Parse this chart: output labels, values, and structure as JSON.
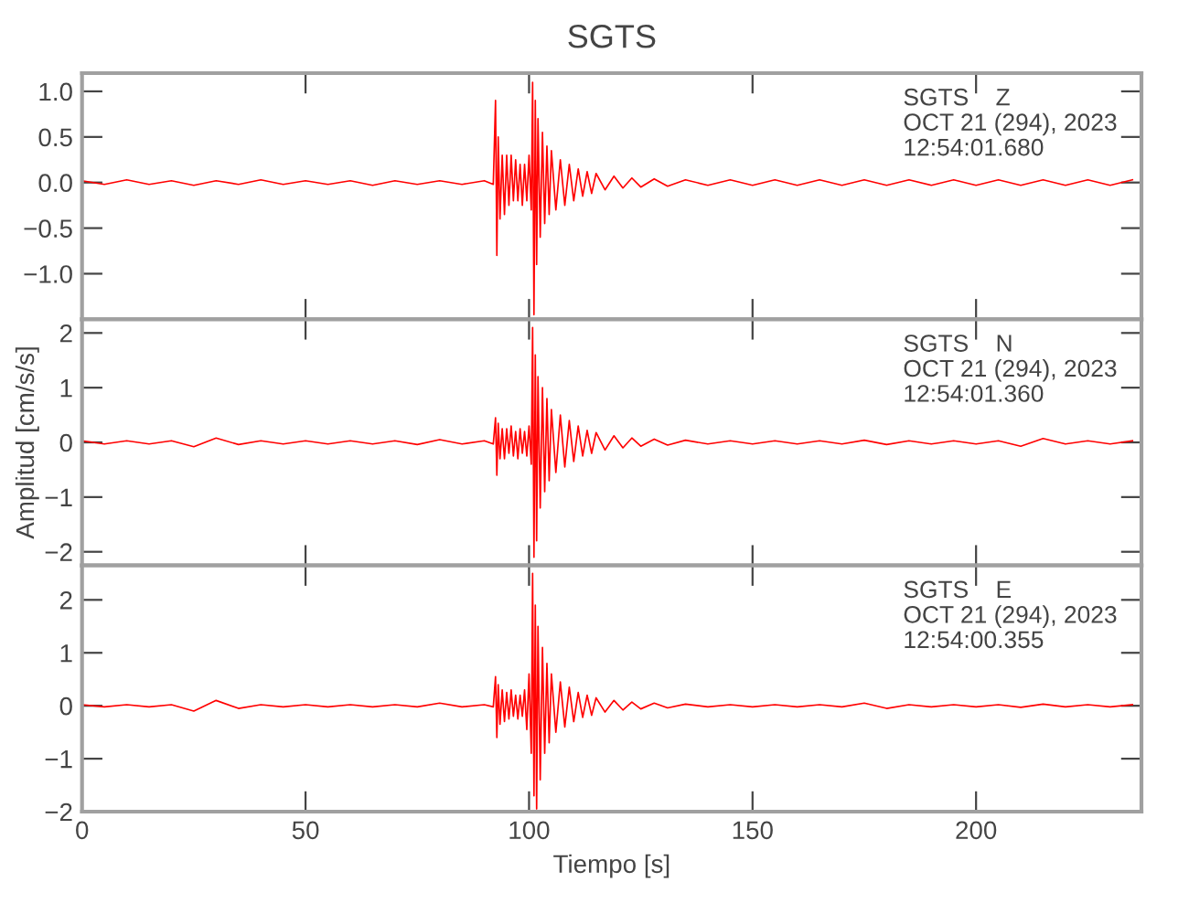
{
  "chart_data": [
    {
      "type": "line",
      "title": "SGTS",
      "annotations": [
        "SGTS    Z\nOCT 21 (294), 2023\n12:54:01.680"
      ],
      "x": [
        0,
        5,
        10,
        15,
        20,
        25,
        30,
        35,
        40,
        45,
        50,
        55,
        60,
        65,
        70,
        75,
        80,
        85,
        90,
        92,
        92.5,
        92.8,
        93.1,
        93.5,
        94,
        94.5,
        95,
        95.5,
        96,
        96.5,
        97,
        97.5,
        98,
        98.5,
        99,
        99.5,
        100,
        100.5,
        100.8,
        101.1,
        101.4,
        101.7,
        102,
        102.5,
        103,
        103.5,
        104,
        104.5,
        105,
        106,
        107,
        108,
        109,
        110,
        111,
        112,
        113,
        114,
        115,
        117,
        119,
        121,
        123,
        125,
        128,
        131,
        135,
        140,
        145,
        150,
        155,
        160,
        165,
        170,
        175,
        180,
        185,
        190,
        195,
        200,
        205,
        210,
        215,
        220,
        225,
        230,
        235
      ],
      "series": [
        {
          "color": "#ff0000",
          "values": [
            0.02,
            -0.02,
            0.03,
            -0.02,
            0.02,
            -0.03,
            0.02,
            -0.02,
            0.03,
            -0.02,
            0.02,
            -0.02,
            0.02,
            -0.03,
            0.02,
            -0.02,
            0.02,
            -0.02,
            0.02,
            -0.02,
            0.9,
            -0.8,
            0.5,
            -0.4,
            0.3,
            -0.35,
            0.3,
            -0.25,
            0.3,
            -0.2,
            0.25,
            -0.2,
            0.2,
            -0.25,
            0.2,
            -0.2,
            0.3,
            -0.3,
            1.1,
            -1.45,
            0.9,
            -0.9,
            0.7,
            -0.6,
            0.55,
            -0.45,
            0.4,
            -0.35,
            0.35,
            -0.3,
            0.25,
            -0.25,
            0.2,
            -0.2,
            0.15,
            -0.15,
            0.12,
            -0.12,
            0.1,
            -0.08,
            0.07,
            -0.06,
            0.05,
            -0.05,
            0.04,
            -0.04,
            0.03,
            -0.03,
            0.03,
            -0.03,
            0.03,
            -0.03,
            0.03,
            -0.03,
            0.03,
            -0.03,
            0.03,
            -0.03,
            0.03,
            -0.03,
            0.03,
            -0.03,
            0.03,
            -0.03,
            0.03,
            -0.03,
            0.03
          ]
        }
      ],
      "xlim": [
        0,
        237
      ],
      "xticks": [
        0,
        50,
        100,
        150,
        200
      ],
      "ylim": [
        -1.5,
        1.2
      ],
      "yticks": [
        {
          "value": -1.0,
          "label": "−1.0"
        },
        {
          "value": -0.5,
          "label": "−0.5"
        },
        {
          "value": 0.0,
          "label": "0.0"
        },
        {
          "value": 0.5,
          "label": "0.5"
        },
        {
          "value": 1.0,
          "label": "1.0"
        }
      ],
      "tick_labels": "y",
      "grid": false,
      "legend": false
    },
    {
      "type": "line",
      "ylabel": "Amplitud [cm/s/s]",
      "annotations": [
        "SGTS    N\nOCT 21 (294), 2023\n12:54:01.360"
      ],
      "x": [
        0,
        5,
        10,
        15,
        20,
        25,
        30,
        35,
        40,
        45,
        50,
        55,
        60,
        65,
        70,
        75,
        80,
        85,
        90,
        92,
        92.5,
        92.8,
        93.1,
        93.5,
        94,
        94.5,
        95,
        95.5,
        96,
        96.5,
        97,
        97.5,
        98,
        98.5,
        99,
        99.5,
        100,
        100.5,
        100.8,
        101.1,
        101.4,
        101.7,
        102,
        102.5,
        103,
        103.5,
        104,
        104.5,
        105,
        106,
        107,
        108,
        109,
        110,
        111,
        112,
        113,
        114,
        115,
        117,
        119,
        121,
        123,
        125,
        128,
        131,
        135,
        140,
        145,
        150,
        155,
        160,
        165,
        170,
        175,
        180,
        185,
        190,
        195,
        200,
        205,
        210,
        215,
        220,
        225,
        230,
        235
      ],
      "series": [
        {
          "color": "#ff0000",
          "values": [
            0.03,
            -0.03,
            0.03,
            -0.03,
            0.03,
            -0.08,
            0.08,
            -0.04,
            0.03,
            -0.03,
            0.03,
            -0.03,
            0.03,
            -0.03,
            0.03,
            -0.04,
            0.05,
            -0.03,
            0.03,
            -0.03,
            0.45,
            -0.6,
            0.35,
            -0.3,
            0.25,
            -0.3,
            0.25,
            -0.2,
            0.3,
            -0.25,
            0.2,
            -0.3,
            0.25,
            -0.2,
            0.2,
            -0.25,
            0.3,
            -0.4,
            2.1,
            -2.1,
            1.6,
            -1.8,
            1.2,
            -1.2,
            1.0,
            -0.9,
            0.8,
            -0.7,
            0.6,
            -0.55,
            0.5,
            -0.45,
            0.4,
            -0.35,
            0.3,
            -0.25,
            0.22,
            -0.2,
            0.18,
            -0.14,
            0.12,
            -0.1,
            0.08,
            -0.07,
            0.06,
            -0.05,
            0.04,
            -0.03,
            0.03,
            -0.03,
            0.03,
            -0.03,
            0.03,
            -0.03,
            0.04,
            -0.04,
            0.03,
            -0.03,
            0.03,
            -0.03,
            0.03,
            -0.07,
            0.07,
            -0.03,
            0.03,
            -0.03,
            0.03
          ]
        }
      ],
      "xlim": [
        0,
        237
      ],
      "xticks": [
        0,
        50,
        100,
        150,
        200
      ],
      "ylim": [
        -2.25,
        2.25
      ],
      "yticks": [
        {
          "value": -2,
          "label": "−2"
        },
        {
          "value": -1,
          "label": "−1"
        },
        0,
        1,
        2
      ],
      "tick_labels": "y",
      "grid": false,
      "legend": false
    },
    {
      "type": "line",
      "xlabel": "Tiempo [s]",
      "annotations": [
        "SGTS    E\nOCT 21 (294), 2023\n12:54:00.355"
      ],
      "x": [
        0,
        5,
        10,
        15,
        20,
        25,
        30,
        35,
        40,
        45,
        50,
        55,
        60,
        65,
        70,
        75,
        80,
        85,
        90,
        92,
        92.5,
        92.8,
        93.1,
        93.5,
        94,
        94.5,
        95,
        95.5,
        96,
        96.5,
        97,
        97.5,
        98,
        98.5,
        99,
        99.5,
        100,
        100.5,
        100.8,
        101.1,
        101.4,
        101.7,
        102,
        102.5,
        103,
        103.5,
        104,
        104.5,
        105,
        106,
        107,
        108,
        109,
        110,
        111,
        112,
        113,
        114,
        115,
        117,
        119,
        121,
        123,
        125,
        128,
        131,
        135,
        140,
        145,
        150,
        155,
        160,
        165,
        170,
        175,
        180,
        185,
        190,
        195,
        200,
        205,
        210,
        215,
        220,
        225,
        230,
        235
      ],
      "series": [
        {
          "color": "#ff0000",
          "values": [
            0.02,
            -0.02,
            0.02,
            -0.02,
            0.02,
            -0.1,
            0.1,
            -0.05,
            0.02,
            -0.02,
            0.02,
            -0.02,
            0.02,
            -0.02,
            0.02,
            -0.02,
            0.05,
            -0.02,
            0.02,
            -0.02,
            0.55,
            -0.6,
            0.4,
            -0.35,
            0.3,
            -0.3,
            0.25,
            -0.25,
            0.3,
            -0.2,
            0.2,
            -0.25,
            0.2,
            -0.2,
            0.3,
            -0.45,
            0.6,
            -0.9,
            2.5,
            -1.7,
            1.9,
            -1.95,
            1.5,
            -1.4,
            1.1,
            -0.9,
            0.8,
            -0.7,
            0.6,
            -0.5,
            0.45,
            -0.4,
            0.35,
            -0.3,
            0.25,
            -0.22,
            0.2,
            -0.18,
            0.15,
            -0.12,
            0.1,
            -0.08,
            0.07,
            -0.06,
            0.05,
            -0.04,
            0.03,
            -0.02,
            0.02,
            -0.02,
            0.02,
            -0.02,
            0.02,
            -0.02,
            0.05,
            -0.05,
            0.02,
            -0.02,
            0.02,
            -0.02,
            0.02,
            -0.03,
            0.03,
            -0.02,
            0.02,
            -0.02,
            0.02
          ]
        }
      ],
      "xlim": [
        0,
        237
      ],
      "xticks": [
        0,
        50,
        100,
        150,
        200
      ],
      "ylim": [
        -2.0,
        2.65
      ],
      "yticks": [
        {
          "value": -2,
          "label": "−2"
        },
        {
          "value": -1,
          "label": "−1"
        },
        0,
        1,
        2
      ],
      "grid": false,
      "legend": false
    }
  ]
}
